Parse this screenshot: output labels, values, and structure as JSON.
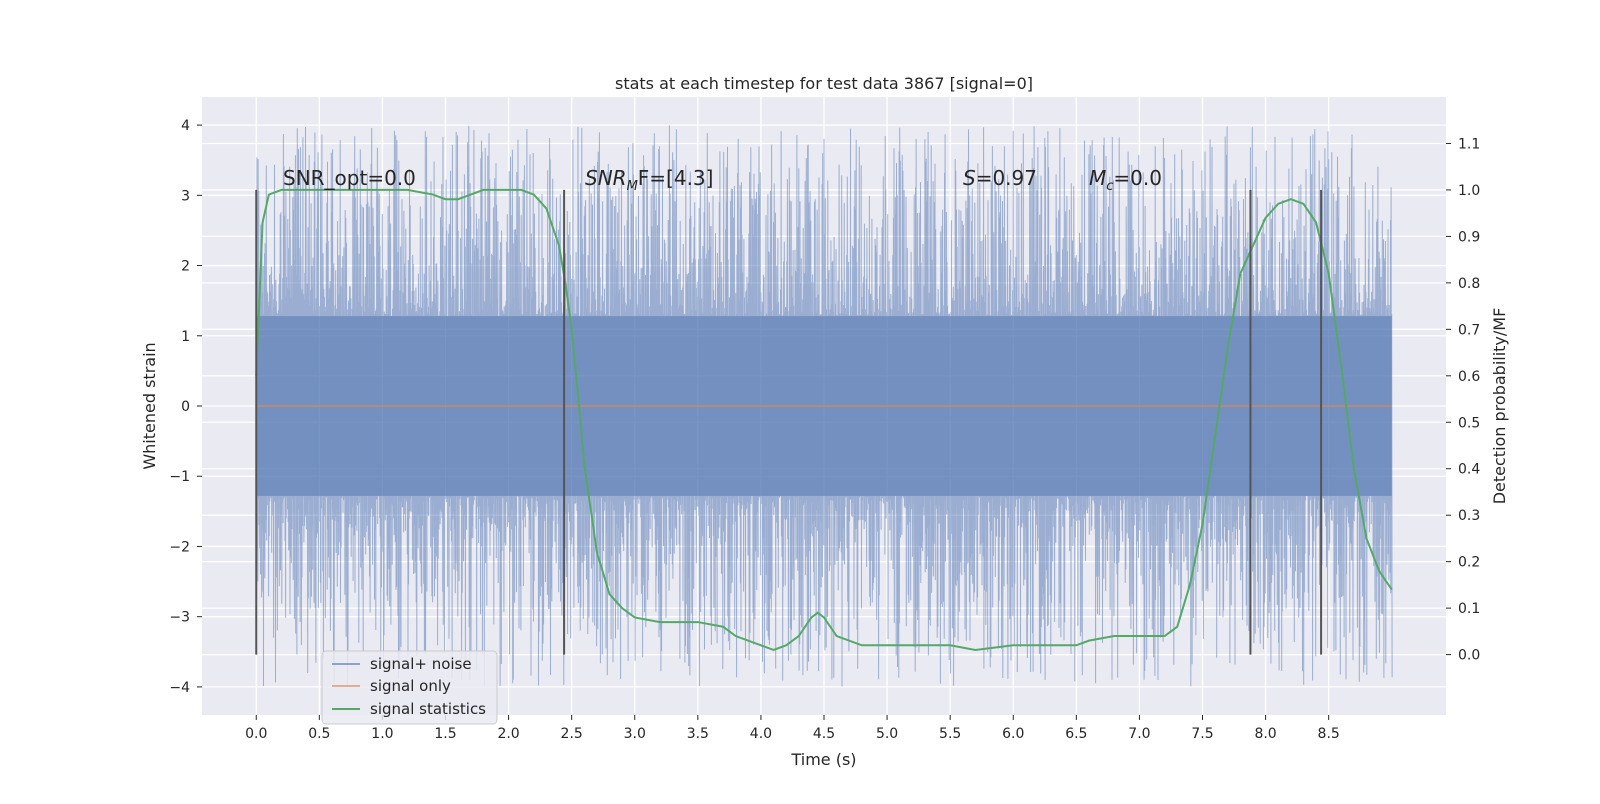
{
  "chart_data": {
    "type": "line",
    "title": "stats at each timestep for test data 3867 [signal=0]",
    "xlabel": "Time (s)",
    "ylabel": "Whitened strain",
    "y2label": "Detection probability/MF",
    "xlim": [
      -0.43,
      9.43
    ],
    "ylim": [
      -4.4,
      4.4
    ],
    "y2lim": [
      -0.13,
      1.2
    ],
    "x_ticks": [
      "0.0",
      "0.5",
      "1.0",
      "1.5",
      "2.0",
      "2.5",
      "3.0",
      "3.5",
      "4.0",
      "4.5",
      "5.0",
      "5.5",
      "6.0",
      "6.5",
      "7.0",
      "7.5",
      "8.0",
      "8.5"
    ],
    "y_ticks": [
      "−4",
      "−3",
      "−2",
      "−1",
      "0",
      "1",
      "2",
      "3",
      "4"
    ],
    "y2_ticks": [
      "0.0",
      "0.1",
      "0.2",
      "0.3",
      "0.4",
      "0.5",
      "0.6",
      "0.7",
      "0.8",
      "0.9",
      "1.0",
      "1.1"
    ],
    "grid": true,
    "legend_position": "lower-left",
    "annotations": {
      "snr_opt": "SNR_opt=0.0",
      "snr_mf_name": "SNR",
      "snr_mf_sub": "M",
      "snr_mf_tail": "F=[4.3]",
      "s_name": "S",
      "s_tail": "=0.97",
      "mc_name": "M",
      "mc_sub": "c",
      "mc_tail": "=0.0"
    },
    "series": [
      {
        "name": "signal+ noise",
        "color": "#4c72b0",
        "x_start": 0.0,
        "x_end": 9.0,
        "core_envelope": [
          -1.28,
          1.28
        ],
        "peak_max": 4.0,
        "peak_min": -4.0
      },
      {
        "name": "signal only",
        "color": "#dd8452",
        "x": [
          0.0,
          9.0
        ],
        "y": [
          0.0,
          0.0
        ]
      },
      {
        "name": "signal statistics",
        "color": "#55a868",
        "x": [
          0.0,
          0.05,
          0.1,
          0.2,
          0.3,
          0.5,
          0.8,
          1.0,
          1.2,
          1.4,
          1.5,
          1.6,
          1.8,
          2.0,
          2.1,
          2.2,
          2.3,
          2.35,
          2.4,
          2.45,
          2.5,
          2.55,
          2.6,
          2.7,
          2.8,
          2.9,
          3.0,
          3.2,
          3.5,
          3.7,
          3.8,
          4.0,
          4.1,
          4.2,
          4.3,
          4.4,
          4.45,
          4.5,
          4.6,
          4.8,
          5.0,
          5.3,
          5.5,
          5.7,
          6.0,
          6.3,
          6.5,
          6.6,
          6.8,
          7.0,
          7.1,
          7.2,
          7.3,
          7.4,
          7.5,
          7.6,
          7.7,
          7.8,
          7.9,
          8.0,
          8.1,
          8.2,
          8.3,
          8.4,
          8.5,
          8.6,
          8.7,
          8.8,
          8.9,
          9.0
        ],
        "y": [
          0.6,
          0.93,
          0.99,
          1.0,
          1.0,
          1.0,
          1.0,
          1.0,
          1.0,
          0.99,
          0.98,
          0.98,
          1.0,
          1.0,
          1.0,
          0.99,
          0.96,
          0.92,
          0.88,
          0.8,
          0.7,
          0.56,
          0.41,
          0.22,
          0.13,
          0.1,
          0.08,
          0.07,
          0.07,
          0.06,
          0.04,
          0.02,
          0.01,
          0.02,
          0.04,
          0.08,
          0.09,
          0.08,
          0.04,
          0.02,
          0.02,
          0.02,
          0.02,
          0.01,
          0.02,
          0.02,
          0.02,
          0.03,
          0.04,
          0.04,
          0.04,
          0.04,
          0.06,
          0.15,
          0.28,
          0.47,
          0.66,
          0.82,
          0.88,
          0.94,
          0.97,
          0.98,
          0.97,
          0.93,
          0.82,
          0.62,
          0.4,
          0.25,
          0.18,
          0.14
        ]
      }
    ],
    "vertical_markers": [
      0.0,
      2.44,
      7.88,
      8.44
    ]
  }
}
